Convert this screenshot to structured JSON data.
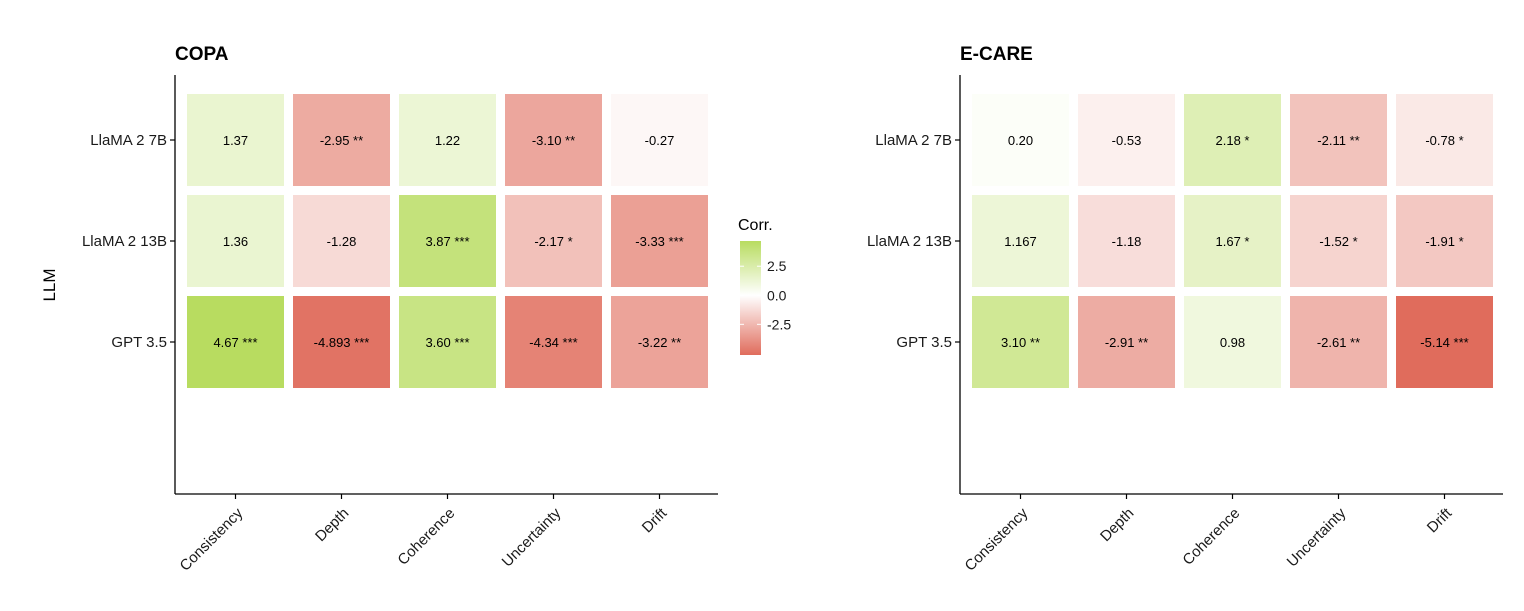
{
  "chart_data": [
    {
      "type": "heatmap",
      "title": "COPA",
      "ylabel": "LLM",
      "xlabel": "",
      "x_categories": [
        "Consistency",
        "Depth",
        "Coherence",
        "Uncertainty",
        "Drift"
      ],
      "y_categories": [
        "LlaMA 2 7B",
        "LlaMA 2 13B",
        "GPT 3.5"
      ],
      "values": [
        [
          1.37,
          -2.95,
          1.22,
          -3.1,
          -0.27
        ],
        [
          1.36,
          -1.28,
          3.87,
          -2.17,
          -3.33
        ],
        [
          4.67,
          -4.893,
          3.6,
          -4.34,
          -3.22
        ]
      ],
      "labels": [
        [
          "1.37",
          "-2.95 **",
          "1.22",
          "-3.10 **",
          "-0.27"
        ],
        [
          "1.36",
          "-1.28",
          "3.87 ***",
          "-2.17 *",
          "-3.33 ***"
        ],
        [
          "4.67 ***",
          "-4.893 ***",
          "3.60 ***",
          "-4.34 ***",
          "-3.22 **"
        ]
      ]
    },
    {
      "type": "heatmap",
      "title": "E-CARE",
      "ylabel": "",
      "xlabel": "",
      "x_categories": [
        "Consistency",
        "Depth",
        "Coherence",
        "Uncertainty",
        "Drift"
      ],
      "y_categories": [
        "LlaMA 2 7B",
        "LlaMA 2 13B",
        "GPT 3.5"
      ],
      "values": [
        [
          0.2,
          -0.53,
          2.18,
          -2.11,
          -0.78
        ],
        [
          1.167,
          -1.18,
          1.67,
          -1.52,
          -1.91
        ],
        [
          3.1,
          -2.91,
          0.98,
          -2.61,
          -5.14
        ]
      ],
      "labels": [
        [
          "0.20",
          "-0.53",
          "2.18 *",
          "-2.11 **",
          "-0.78 *"
        ],
        [
          "1.167",
          "-1.18",
          "1.67 *",
          "-1.52 *",
          "-1.91 *"
        ],
        [
          "3.10 **",
          "-2.91 **",
          "0.98",
          "-2.61 **",
          "-5.14 ***"
        ]
      ]
    }
  ],
  "legend": {
    "title": "Corr.",
    "ticks": [
      {
        "value": 2.5,
        "label": "2.5"
      },
      {
        "value": 0.0,
        "label": "0.0"
      },
      {
        "value": -2.5,
        "label": "-2.5"
      }
    ],
    "range": [
      -5.14,
      4.67
    ],
    "colors": {
      "low": "#e06c5c",
      "mid": "#ffffff",
      "high": "#b8dc60"
    }
  }
}
